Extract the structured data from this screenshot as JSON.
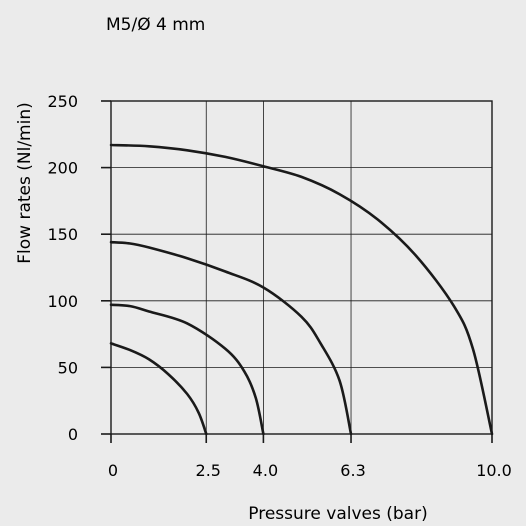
{
  "chart_data": {
    "type": "line",
    "title": "M5/Ø 4 mm",
    "xlabel": "Pressure valves (bar)",
    "ylabel": "Flow rates (Nl/min)",
    "xticks": [
      "0",
      "2.5",
      "4.0",
      "6.3",
      "10.0"
    ],
    "xtick_values": [
      0,
      2.5,
      4.0,
      6.3,
      10.0
    ],
    "yticks": [
      0,
      50,
      100,
      150,
      200,
      250
    ],
    "ylim": [
      0,
      250
    ],
    "grid": true,
    "colors": {
      "background": "#ebebeb",
      "line": "#1a1a1a",
      "grid": "#1a1a1a"
    },
    "series": [
      {
        "x": [
          0,
          0.5,
          1.0,
          1.5,
          2.0,
          2.3,
          2.5
        ],
        "y": [
          68,
          63,
          56,
          45,
          30,
          16,
          0
        ]
      },
      {
        "x": [
          0,
          0.5,
          1.0,
          2.0,
          3.0,
          3.5,
          3.8,
          4.0
        ],
        "y": [
          97,
          96,
          92,
          83,
          64,
          47,
          27,
          0
        ]
      },
      {
        "x": [
          0,
          0.5,
          1.0,
          2.0,
          3.0,
          4.0,
          5.0,
          5.5,
          6.0,
          6.3
        ],
        "y": [
          144,
          143,
          140,
          132,
          122,
          110,
          88,
          68,
          40,
          0
        ]
      },
      {
        "x": [
          0,
          1.0,
          2.0,
          3.0,
          4.0,
          5.0,
          6.0,
          7.0,
          8.0,
          9.0,
          9.5,
          10.0
        ],
        "y": [
          217,
          216,
          213,
          208,
          201,
          193,
          180,
          161,
          134,
          96,
          64,
          0
        ]
      }
    ]
  }
}
